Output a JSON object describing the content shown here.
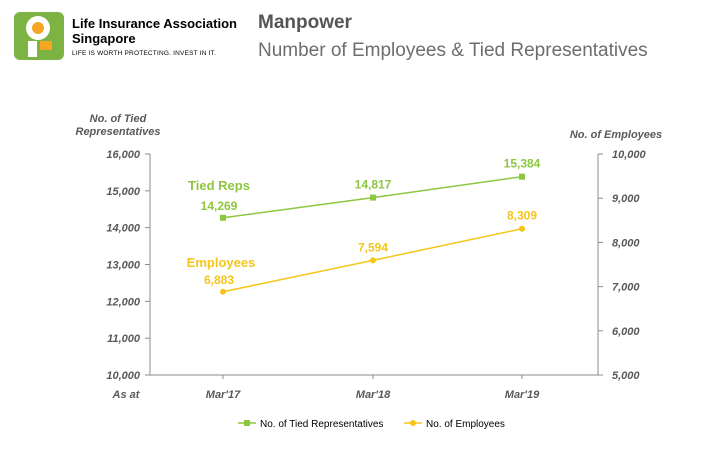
{
  "header": {
    "org_name_line1": "Life Insurance Association",
    "org_name_line2": "Singapore",
    "tagline": "LIFE IS WORTH PROTECTING. INVEST IN IT.",
    "title": "Manpower",
    "subtitle": "Number of Employees & Tied Representatives"
  },
  "colors": {
    "tied_reps": "#8dc63f",
    "employees": "#f5c518",
    "logo_green": "#7cb342",
    "logo_orange": "#f5a623"
  },
  "chart_data": {
    "type": "line",
    "categories": [
      "Mar'17",
      "Mar'18",
      "Mar'19"
    ],
    "x_axis_prefix": "As at",
    "grid": false,
    "legend_position": "bottom",
    "y_left": {
      "label_line1": "No. of Tied",
      "label_line2": "Representatives",
      "min": 10000,
      "max": 16000,
      "step": 1000,
      "ticks": [
        "10,000",
        "11,000",
        "12,000",
        "13,000",
        "14,000",
        "15,000",
        "16,000"
      ]
    },
    "y_right": {
      "label": "No. of Employees",
      "min": 5000,
      "max": 10000,
      "step": 1000,
      "ticks": [
        "5,000",
        "6,000",
        "7,000",
        "8,000",
        "9,000",
        "10,000"
      ]
    },
    "series": [
      {
        "name": "No. of Tied Representatives",
        "inline_label": "Tied Reps",
        "axis": "left",
        "values": [
          14269,
          14817,
          15384
        ],
        "labels": [
          "14,269",
          "14,817",
          "15,384"
        ]
      },
      {
        "name": "No. of Employees",
        "inline_label": "Employees",
        "axis": "right",
        "values": [
          6883,
          7594,
          8309
        ],
        "labels": [
          "6,883",
          "7,594",
          "8,309"
        ]
      }
    ]
  }
}
